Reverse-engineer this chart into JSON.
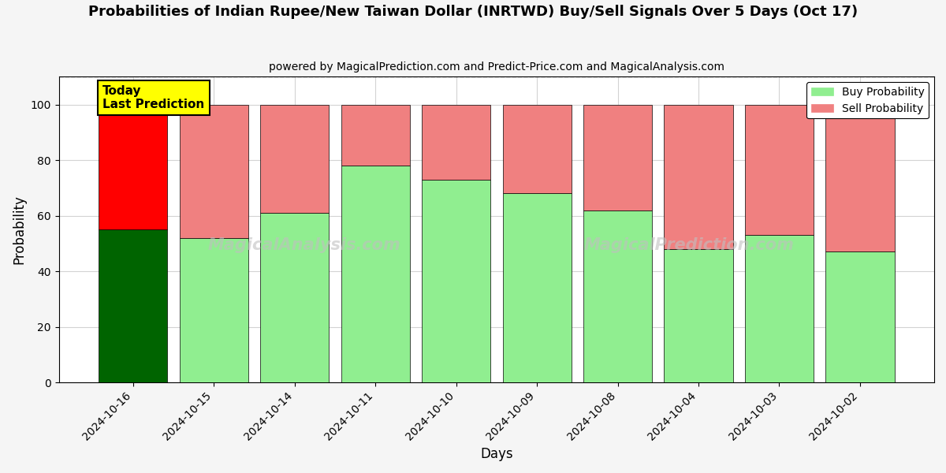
{
  "title": "Probabilities of Indian Rupee/New Taiwan Dollar (INRTWD) Buy/Sell Signals Over 5 Days (Oct 17)",
  "subtitle": "powered by MagicalPrediction.com and Predict-Price.com and MagicalAnalysis.com",
  "xlabel": "Days",
  "ylabel": "Probability",
  "dates": [
    "2024-10-16",
    "2024-10-15",
    "2024-10-14",
    "2024-10-11",
    "2024-10-10",
    "2024-10-09",
    "2024-10-08",
    "2024-10-04",
    "2024-10-03",
    "2024-10-02"
  ],
  "buy_values": [
    55,
    52,
    61,
    78,
    73,
    68,
    62,
    48,
    53,
    47
  ],
  "sell_values": [
    45,
    48,
    39,
    22,
    27,
    32,
    38,
    52,
    47,
    53
  ],
  "today_buy_color": "#006400",
  "today_sell_color": "#FF0000",
  "buy_color": "#90EE90",
  "sell_color": "#F08080",
  "today_annotation_bg": "#FFFF00",
  "today_annotation_text": "Today\nLast Prediction",
  "legend_buy": "Buy Probability",
  "legend_sell": "Sell Probability",
  "ylim": [
    0,
    110
  ],
  "yticks": [
    0,
    20,
    40,
    60,
    80,
    100
  ],
  "dashed_line_y": 110,
  "watermark_left": "MagicalAnalysis.com",
  "watermark_right": "MagicalPrediction.com",
  "bar_width": 0.85,
  "bg_color": "#f5f5f5",
  "plot_bg_color": "#ffffff"
}
